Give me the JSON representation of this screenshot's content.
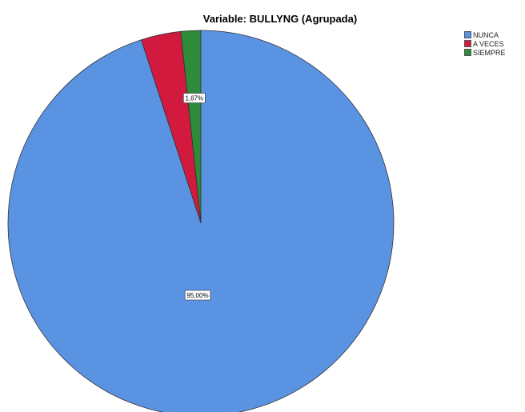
{
  "chart_data": {
    "type": "pie",
    "title": "Variable: BULLYNG (Agrupada)",
    "categories": [
      "NUNCA",
      "A VECES",
      "SIEMPRE"
    ],
    "values": [
      95.0,
      3.33,
      1.67
    ],
    "colors": [
      "#5B93E3",
      "#D21A3F",
      "#2E8B3A"
    ],
    "data_labels": [
      "95,00%",
      "",
      "1,67%"
    ],
    "legend_position": "top-right",
    "slice_order": "clockwise from top, last slice first"
  }
}
